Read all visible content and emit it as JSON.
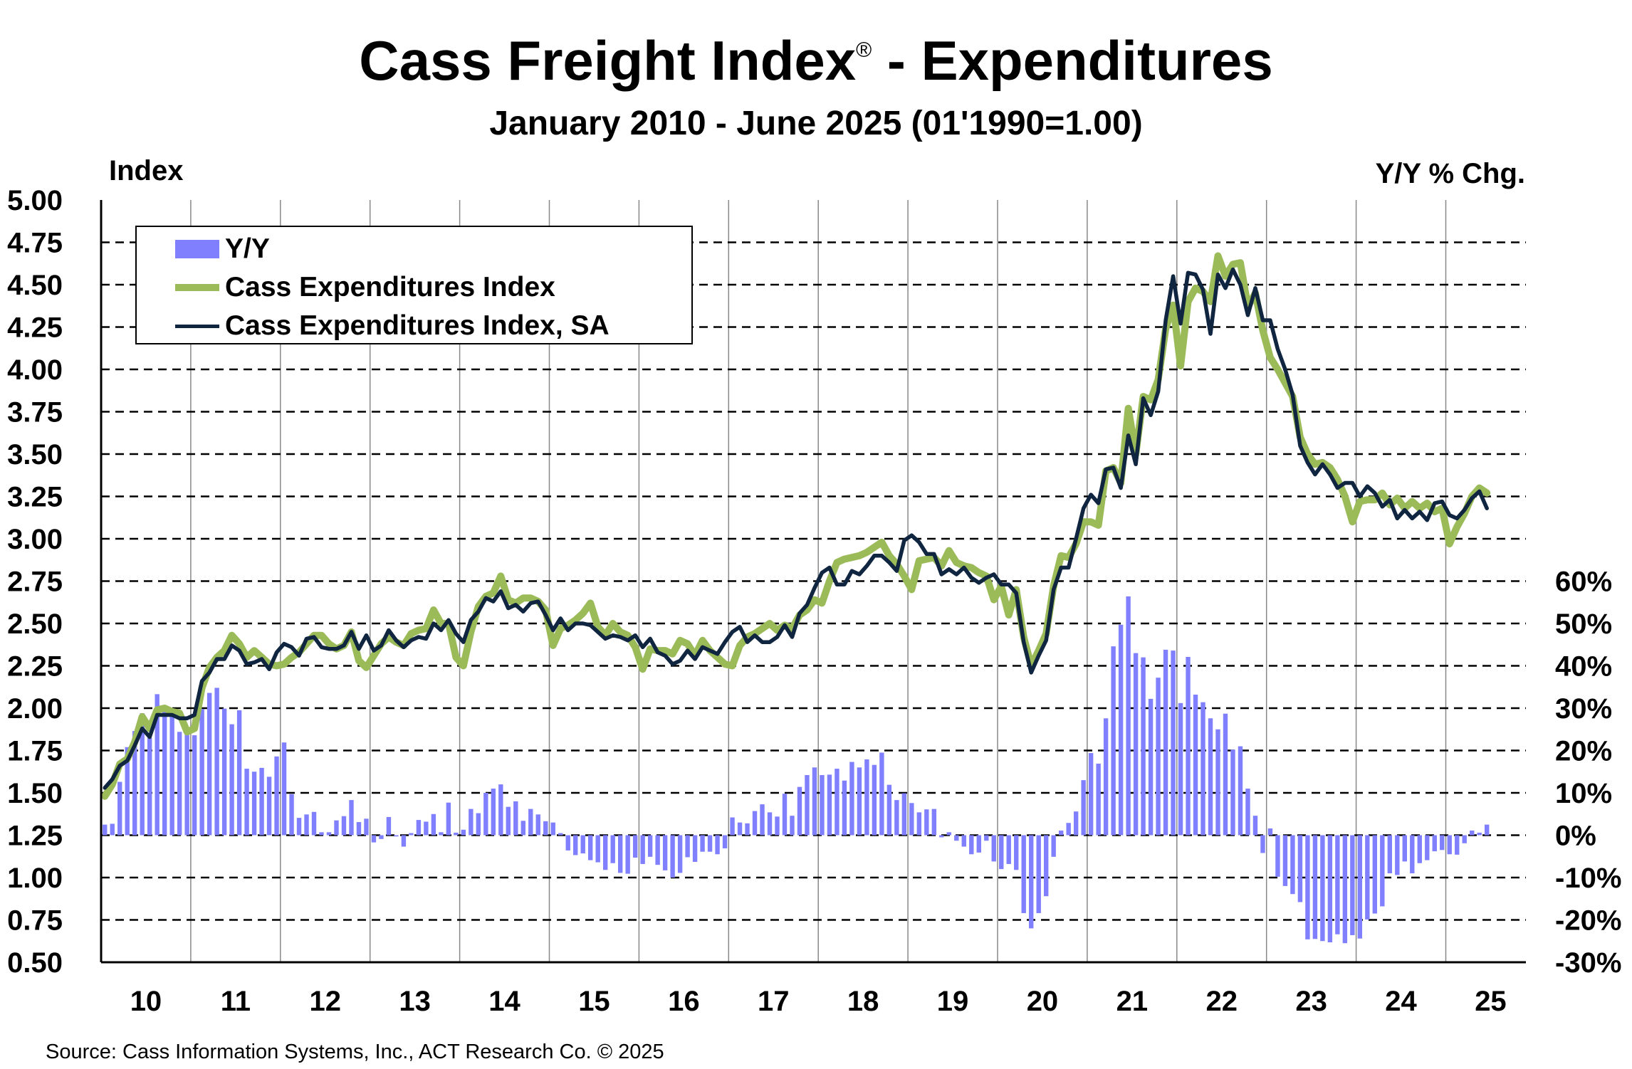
{
  "title": "Cass Freight Index",
  "title_mark": "®",
  "title_suffix": " - Expenditures",
  "subtitle": "January 2010 - June 2025 (01'1990=1.00)",
  "left_axis_label": "Index",
  "right_axis_label": "Y/Y % Chg.",
  "source": "Source: Cass Information Systems, Inc., ACT Research Co. © 2025",
  "colors": {
    "yoy": "#8080FF",
    "index": "#9BBB59",
    "index_sa": "#0F2540"
  },
  "chart_data": {
    "type": "bar+line",
    "start": "2010-01",
    "frequency": "monthly",
    "end": "2025-06",
    "x_tick_labels": [
      "10",
      "11",
      "12",
      "13",
      "14",
      "15",
      "16",
      "17",
      "18",
      "19",
      "20",
      "21",
      "22",
      "23",
      "24",
      "25"
    ],
    "left_axis": {
      "label": "Index",
      "ylim": [
        0.5,
        5.0
      ],
      "ticks": [
        "5.00",
        "4.75",
        "4.50",
        "4.25",
        "4.00",
        "3.75",
        "3.50",
        "3.25",
        "3.00",
        "2.75",
        "2.50",
        "2.25",
        "2.00",
        "1.75",
        "1.50",
        "1.25",
        "1.00",
        "0.75",
        "0.50"
      ]
    },
    "right_axis": {
      "label": "Y/Y % Chg.",
      "ylim": [
        -30,
        60
      ],
      "ticks": [
        "60%",
        "50%",
        "40%",
        "30%",
        "20%",
        "10%",
        "0%",
        "-10%",
        "-20%",
        "-30%"
      ]
    },
    "grid": "horizontal dashed, vertical per year",
    "legend_position": "top-left",
    "series": [
      {
        "name": "Y/Y",
        "type": "bar",
        "axis": "right",
        "values": [
          2.5,
          2.7,
          12.6,
          20.8,
          24.6,
          28.8,
          23.0,
          33.3,
          29.2,
          28.7,
          24.4,
          25.0,
          23.6,
          29.8,
          33.6,
          34.8,
          29.9,
          26.2,
          29.5,
          15.7,
          15.0,
          15.9,
          13.8,
          18.6,
          21.9,
          9.7,
          4.1,
          4.9,
          5.5,
          0.7,
          0.7,
          3.5,
          4.5,
          8.3,
          3.1,
          3.9,
          -1.7,
          -0.9,
          4.3,
          -0.3,
          -2.7,
          0.5,
          3.6,
          3.2,
          5.0,
          0.7,
          7.7,
          0.6,
          1.3,
          6.2,
          5.2,
          10.0,
          11.0,
          12.0,
          6.7,
          8.0,
          3.4,
          6.2,
          4.9,
          3.3,
          3.0,
          0.5,
          -3.6,
          -4.7,
          -4.3,
          -5.9,
          -6.4,
          -8.2,
          -6.6,
          -8.9,
          -9.1,
          -5.3,
          -6.8,
          -5.1,
          -7.0,
          -8.3,
          -10.0,
          -8.9,
          -5.2,
          -6.3,
          -3.9,
          -3.9,
          -4.5,
          -3.1,
          4.2,
          3.0,
          2.8,
          5.7,
          7.3,
          5.4,
          4.4,
          9.8,
          4.6,
          11.4,
          14.2,
          16.0,
          14.2,
          14.3,
          15.7,
          12.9,
          17.3,
          16.0,
          17.9,
          16.6,
          19.5,
          11.9,
          8.3,
          9.9,
          7.6,
          5.4,
          6.1,
          6.2,
          -0.5,
          0.7,
          -1.3,
          -2.7,
          -4.5,
          -4.1,
          -1.3,
          -6.2,
          -8.0,
          -6.8,
          -8.2,
          -18.4,
          -22.0,
          -18.4,
          -14.4,
          -5.1,
          1.1,
          2.9,
          5.6,
          13.0,
          19.4,
          16.9,
          27.6,
          44.6,
          49.7,
          56.4,
          43.0,
          42.0,
          32.2,
          37.2,
          43.8,
          43.6,
          31.2,
          42.1,
          33.2,
          31.4,
          27.6,
          25.0,
          28.7,
          20.2,
          21.0,
          11.0,
          4.6,
          -4.2,
          1.6,
          -9.8,
          -12.0,
          -13.9,
          -15.8,
          -24.6,
          -24.5,
          -25.0,
          -25.3,
          -23.4,
          -25.5,
          -23.6,
          -24.4,
          -19.9,
          -18.5,
          -16.8,
          -9.0,
          -9.4,
          -6.2,
          -9.0,
          -6.6,
          -5.9,
          -3.8,
          -3.5,
          -4.5,
          -4.6,
          -1.9,
          1.1,
          0.6,
          2.5
        ]
      },
      {
        "name": "Cass Expenditures Index",
        "type": "line",
        "axis": "left",
        "values": [
          1.48,
          1.55,
          1.67,
          1.7,
          1.8,
          1.95,
          1.88,
          1.99,
          2.0,
          1.98,
          1.97,
          1.86,
          1.88,
          2.12,
          2.24,
          2.3,
          2.34,
          2.43,
          2.38,
          2.3,
          2.34,
          2.3,
          2.26,
          2.25,
          2.26,
          2.3,
          2.33,
          2.38,
          2.43,
          2.43,
          2.38,
          2.35,
          2.37,
          2.45,
          2.28,
          2.24,
          2.31,
          2.38,
          2.42,
          2.39,
          2.37,
          2.44,
          2.46,
          2.47,
          2.58,
          2.5,
          2.5,
          2.3,
          2.25,
          2.45,
          2.6,
          2.66,
          2.68,
          2.78,
          2.64,
          2.62,
          2.65,
          2.65,
          2.63,
          2.58,
          2.37,
          2.47,
          2.49,
          2.52,
          2.56,
          2.62,
          2.48,
          2.43,
          2.5,
          2.45,
          2.43,
          2.36,
          2.23,
          2.35,
          2.34,
          2.34,
          2.32,
          2.4,
          2.38,
          2.31,
          2.4,
          2.34,
          2.3,
          2.26,
          2.25,
          2.37,
          2.42,
          2.44,
          2.47,
          2.5,
          2.46,
          2.49,
          2.47,
          2.55,
          2.58,
          2.64,
          2.62,
          2.75,
          2.86,
          2.88,
          2.89,
          2.9,
          2.92,
          2.95,
          2.98,
          2.9,
          2.85,
          2.78,
          2.7,
          2.87,
          2.88,
          2.89,
          2.84,
          2.93,
          2.86,
          2.84,
          2.83,
          2.8,
          2.78,
          2.64,
          2.72,
          2.55,
          2.7,
          2.42,
          2.25,
          2.34,
          2.44,
          2.72,
          2.9,
          2.89,
          2.97,
          3.1,
          3.1,
          3.08,
          3.4,
          3.42,
          3.33,
          3.77,
          3.5,
          3.84,
          3.82,
          3.94,
          4.24,
          4.38,
          4.02,
          4.4,
          4.48,
          4.46,
          4.4,
          4.67,
          4.55,
          4.62,
          4.63,
          4.37,
          4.45,
          4.23,
          4.07,
          4.0,
          3.92,
          3.84,
          3.6,
          3.5,
          3.44,
          3.45,
          3.42,
          3.35,
          3.25,
          3.1,
          3.22,
          3.23,
          3.23,
          3.27,
          3.2,
          3.24,
          3.18,
          3.22,
          3.18,
          3.21,
          3.16,
          3.18,
          2.97,
          3.07,
          3.15,
          3.25,
          3.3,
          3.27
        ]
      },
      {
        "name": "Cass Expenditures Index, SA",
        "type": "line",
        "axis": "left",
        "values": [
          1.53,
          1.58,
          1.66,
          1.69,
          1.78,
          1.88,
          1.83,
          1.96,
          1.96,
          1.96,
          1.94,
          1.94,
          1.96,
          2.16,
          2.21,
          2.29,
          2.29,
          2.37,
          2.34,
          2.26,
          2.27,
          2.29,
          2.23,
          2.33,
          2.38,
          2.36,
          2.31,
          2.41,
          2.42,
          2.36,
          2.35,
          2.35,
          2.37,
          2.45,
          2.35,
          2.43,
          2.34,
          2.37,
          2.46,
          2.4,
          2.36,
          2.4,
          2.42,
          2.41,
          2.5,
          2.46,
          2.52,
          2.44,
          2.39,
          2.52,
          2.57,
          2.65,
          2.63,
          2.69,
          2.59,
          2.61,
          2.57,
          2.62,
          2.63,
          2.55,
          2.46,
          2.53,
          2.46,
          2.5,
          2.5,
          2.49,
          2.45,
          2.41,
          2.43,
          2.42,
          2.4,
          2.43,
          2.36,
          2.41,
          2.33,
          2.31,
          2.26,
          2.28,
          2.34,
          2.29,
          2.36,
          2.34,
          2.32,
          2.39,
          2.45,
          2.48,
          2.39,
          2.43,
          2.39,
          2.39,
          2.42,
          2.49,
          2.42,
          2.56,
          2.61,
          2.71,
          2.8,
          2.83,
          2.73,
          2.73,
          2.81,
          2.79,
          2.84,
          2.9,
          2.9,
          2.86,
          2.81,
          2.99,
          3.02,
          2.98,
          2.91,
          2.91,
          2.79,
          2.82,
          2.79,
          2.83,
          2.77,
          2.74,
          2.77,
          2.79,
          2.73,
          2.73,
          2.68,
          2.39,
          2.21,
          2.31,
          2.4,
          2.7,
          2.83,
          2.83,
          3.0,
          3.18,
          3.26,
          3.21,
          3.41,
          3.42,
          3.3,
          3.61,
          3.44,
          3.83,
          3.73,
          3.87,
          4.29,
          4.55,
          4.27,
          4.57,
          4.56,
          4.47,
          4.21,
          4.56,
          4.48,
          4.59,
          4.5,
          4.32,
          4.48,
          4.29,
          4.29,
          4.12,
          4.0,
          3.85,
          3.55,
          3.45,
          3.38,
          3.44,
          3.38,
          3.3,
          3.33,
          3.33,
          3.25,
          3.31,
          3.27,
          3.19,
          3.23,
          3.12,
          3.17,
          3.12,
          3.16,
          3.11,
          3.21,
          3.22,
          3.14,
          3.12,
          3.17,
          3.24,
          3.28,
          3.18
        ]
      }
    ]
  }
}
